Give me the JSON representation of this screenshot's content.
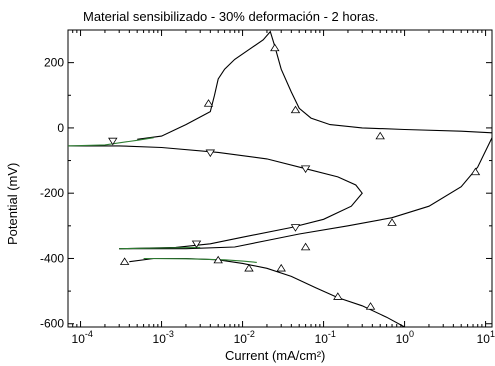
{
  "chart_data": {
    "type": "line",
    "title": "Material sensibilizado - 30% deformación - 2 horas.",
    "xlabel": "Current (mA/cm²)",
    "ylabel": "Potential (mV)",
    "x_scale": "log",
    "xlim": [
      7e-05,
      12
    ],
    "ylim": [
      -610,
      300
    ],
    "x_ticks": [
      {
        "value": 0.0001,
        "base": "10",
        "exp": "-4"
      },
      {
        "value": 0.001,
        "base": "10",
        "exp": "-3"
      },
      {
        "value": 0.01,
        "base": "10",
        "exp": "-2"
      },
      {
        "value": 0.1,
        "base": "10",
        "exp": "-1"
      },
      {
        "value": 1,
        "base": "10",
        "exp": "0"
      },
      {
        "value": 10,
        "base": "10",
        "exp": "1"
      }
    ],
    "y_ticks": [
      {
        "value": 200,
        "label": "200"
      },
      {
        "value": 0,
        "label": "0"
      },
      {
        "value": -200,
        "label": "-200"
      },
      {
        "value": -400,
        "label": "-400"
      },
      {
        "value": -600,
        "label": "-600"
      }
    ],
    "grid": false,
    "series": [
      {
        "color": "#000000",
        "marker": "triangle-up",
        "points": [
          [
            0.0004,
            -410
          ],
          [
            0.0008,
            -400
          ],
          [
            0.002,
            -400
          ],
          [
            0.005,
            -404
          ],
          [
            0.01,
            -415
          ],
          [
            0.02,
            -430
          ],
          [
            0.04,
            -455
          ],
          [
            0.08,
            -490
          ],
          [
            0.15,
            -520
          ],
          [
            0.3,
            -545
          ],
          [
            0.6,
            -580
          ],
          [
            1.0,
            -610
          ]
        ],
        "marker_points": [
          [
            0.00035,
            -410
          ],
          [
            0.005,
            -405
          ],
          [
            0.012,
            -430
          ],
          [
            0.03,
            -430
          ],
          [
            0.15,
            -517
          ],
          [
            0.38,
            -547
          ]
        ]
      },
      {
        "color": "#2e7d32",
        "marker": "none",
        "points": [
          [
            0.0006,
            -400
          ],
          [
            0.002,
            -401
          ],
          [
            0.006,
            -404
          ],
          [
            0.01,
            -408
          ],
          [
            0.015,
            -412
          ]
        ]
      },
      {
        "color": "#000000",
        "marker": "triangle-up",
        "points": [
          [
            0.0003,
            -370
          ],
          [
            0.002,
            -370
          ],
          [
            0.008,
            -365
          ],
          [
            0.02,
            -345
          ],
          [
            0.05,
            -325
          ],
          [
            0.2,
            -300
          ],
          [
            0.7,
            -275
          ],
          [
            2,
            -240
          ],
          [
            5,
            -180
          ],
          [
            8,
            -120
          ],
          [
            12,
            -30
          ]
        ],
        "marker_points": [
          [
            0.06,
            -365
          ],
          [
            0.7,
            -290
          ],
          [
            7.5,
            -135
          ]
        ]
      },
      {
        "color": "#000000",
        "marker": "triangle-down",
        "points": [
          [
            7e-05,
            -55
          ],
          [
            0.0003,
            -55
          ],
          [
            0.001,
            -60
          ],
          [
            0.005,
            -75
          ],
          [
            0.02,
            -95
          ],
          [
            0.06,
            -125
          ],
          [
            0.15,
            -150
          ],
          [
            0.25,
            -175
          ],
          [
            0.3,
            -200
          ],
          [
            0.22,
            -240
          ],
          [
            0.1,
            -280
          ],
          [
            0.04,
            -305
          ],
          [
            0.01,
            -335
          ],
          [
            0.004,
            -355
          ],
          [
            0.0015,
            -366
          ],
          [
            0.0003,
            -370
          ]
        ],
        "marker_points": [
          [
            0.00025,
            -40
          ],
          [
            0.004,
            -76
          ],
          [
            0.06,
            -125
          ],
          [
            0.045,
            -305
          ],
          [
            0.0027,
            -355
          ]
        ]
      },
      {
        "color": "#000000",
        "marker": "triangle-up",
        "points": [
          [
            0.0005,
            -35
          ],
          [
            0.001,
            -25
          ],
          [
            0.002,
            10
          ],
          [
            0.004,
            50
          ],
          [
            0.0045,
            100
          ],
          [
            0.005,
            150
          ],
          [
            0.006,
            180
          ],
          [
            0.008,
            210
          ],
          [
            0.012,
            240
          ],
          [
            0.018,
            270
          ],
          [
            0.022,
            295
          ],
          [
            0.025,
            250
          ],
          [
            0.03,
            180
          ],
          [
            0.04,
            110
          ],
          [
            0.05,
            60
          ],
          [
            0.07,
            30
          ],
          [
            0.12,
            10
          ],
          [
            0.3,
            0
          ],
          [
            1,
            -5
          ],
          [
            5,
            -10
          ],
          [
            12,
            -15
          ]
        ],
        "marker_points": [
          [
            0.0038,
            75
          ],
          [
            0.025,
            245
          ],
          [
            0.045,
            55
          ],
          [
            0.5,
            -25
          ]
        ]
      },
      {
        "color": "#2e7d32",
        "marker": "none",
        "points": [
          [
            7e-05,
            -55
          ],
          [
            0.0002,
            -52
          ],
          [
            0.0005,
            -38
          ],
          [
            0.0008,
            -30
          ]
        ]
      },
      {
        "color": "#2e7d32",
        "marker": "none",
        "points": [
          [
            0.0003,
            -370
          ],
          [
            0.001,
            -368
          ],
          [
            0.003,
            -366
          ]
        ]
      }
    ]
  }
}
